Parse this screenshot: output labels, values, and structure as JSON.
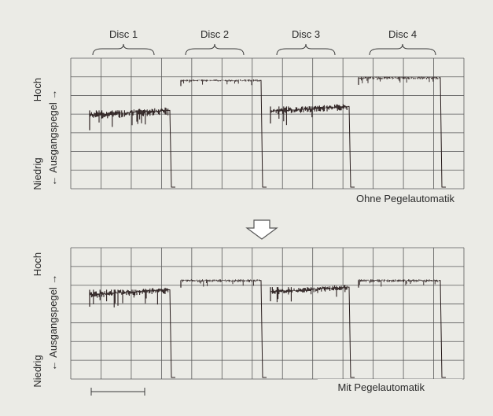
{
  "disc_labels": [
    "Disc 1",
    "Disc 2",
    "Disc 3",
    "Disc 4"
  ],
  "panels": [
    {
      "id": "top",
      "caption": "Ohne Pegelautomatik",
      "axis_high": "Hoch",
      "axis_low": "Niedrig",
      "axis_name": "Ausgangspegel",
      "disc_levels": [
        0.6,
        0.83,
        0.63,
        0.85
      ]
    },
    {
      "id": "bottom",
      "caption": "Mit Pegelautomatik",
      "axis_high": "Hoch",
      "axis_low": "Niedrig",
      "axis_name": "Ausgangspegel",
      "disc_levels": [
        0.68,
        0.75,
        0.7,
        0.75
      ]
    }
  ],
  "arrow_icon": "down-arrow-icon",
  "colors": {
    "background": "#ebebe6",
    "grid": "#5a5a5a",
    "trace": "#2a1e1e",
    "text": "#2a2a2a"
  }
}
